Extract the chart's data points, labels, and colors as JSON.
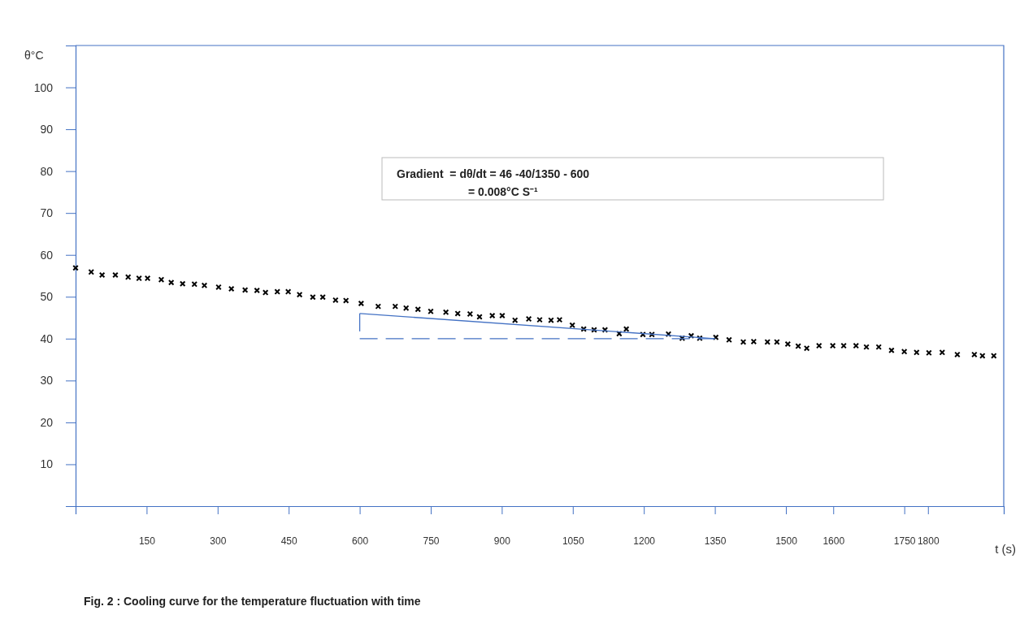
{
  "chart_data": {
    "type": "scatter",
    "xlabel": "t (s)",
    "ylabel": "θ°C",
    "xlim": [
      0,
      1960
    ],
    "ylim": [
      0,
      110
    ],
    "xticks": [
      150,
      300,
      450,
      600,
      750,
      900,
      1050,
      1200,
      1350,
      1500,
      1600,
      1750,
      1800
    ],
    "yticks": [
      10,
      20,
      30,
      40,
      50,
      60,
      70,
      80,
      90,
      100
    ],
    "grid": false,
    "marker": "cross",
    "annotations": [
      "Gradient  = dθ/dt = 46 -40/1350 - 600",
      "= 0.008°C S⁻¹",
      "Fig. 2 : Cooling curve for the temperature fluctuation with time"
    ],
    "series": [
      {
        "color": "#000000",
        "x": [
          0,
          33,
          56,
          84,
          111,
          134,
          152,
          181,
          202,
          226,
          251,
          272,
          302,
          329,
          358,
          383,
          401,
          426,
          449,
          473,
          501,
          522,
          549,
          571,
          603,
          639,
          675,
          698,
          723,
          750,
          782,
          807,
          833,
          853,
          880,
          901,
          928,
          957,
          980,
          1004,
          1022,
          1049,
          1073,
          1095,
          1118,
          1148,
          1163,
          1198,
          1217,
          1252,
          1281,
          1300,
          1318,
          1352,
          1380,
          1410,
          1432,
          1461,
          1481,
          1504,
          1526,
          1544,
          1570,
          1599,
          1622,
          1648,
          1670,
          1696,
          1723,
          1750,
          1776,
          1802,
          1830,
          1862,
          1898,
          1915,
          1939
        ],
        "values": [
          56.9,
          55.9,
          55.2,
          55.2,
          54.7,
          54.4,
          54.4,
          54.1,
          53.4,
          53.1,
          53.0,
          52.7,
          52.3,
          51.9,
          51.6,
          51.5,
          51.0,
          51.2,
          51.2,
          50.5,
          49.9,
          49.9,
          49.2,
          49.1,
          48.4,
          47.7,
          47.7,
          47.3,
          47.0,
          46.5,
          46.3,
          46.0,
          45.9,
          45.2,
          45.5,
          45.5,
          44.4,
          44.7,
          44.5,
          44.4,
          44.5,
          43.2,
          42.3,
          42.1,
          42.1,
          41.2,
          42.3,
          41.0,
          41.0,
          41.1,
          40.1,
          40.7,
          40.1,
          40.3,
          39.7,
          39.2,
          39.3,
          39.2,
          39.2,
          38.7,
          38.2,
          37.7,
          38.3,
          38.3,
          38.3,
          38.3,
          38.0,
          38.0,
          37.2,
          36.9,
          36.7,
          36.6,
          36.7,
          36.2,
          36.2,
          35.9,
          35.9
        ]
      },
      {
        "type": "line",
        "color": "#4472c4",
        "line_style": "solid",
        "marker": "none",
        "x": [
          600,
          1350
        ],
        "values": [
          46,
          40
        ]
      },
      {
        "type": "line",
        "color": "#4472c4",
        "line_style": "dashed",
        "marker": "none",
        "x": [
          600,
          1350
        ],
        "values": [
          40,
          40
        ]
      },
      {
        "type": "line",
        "color": "#4472c4",
        "line_style": "dashed",
        "marker": "none",
        "x": [
          600,
          600
        ],
        "values": [
          46,
          40
        ]
      }
    ]
  }
}
